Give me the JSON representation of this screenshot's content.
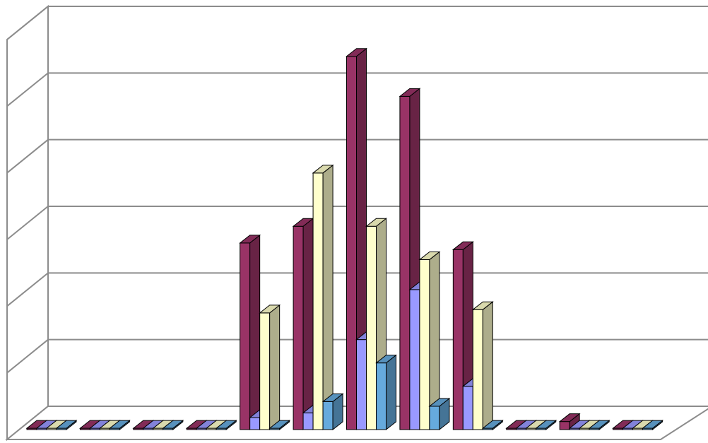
{
  "chart_data": {
    "type": "bar",
    "style": "3d-clustered-column",
    "gridlines": true,
    "legend": "none",
    "ylim": [
      0,
      6
    ],
    "categories": [
      "",
      "",
      "",
      "",
      "",
      "",
      "",
      "",
      "",
      "",
      "",
      ""
    ],
    "series": [
      {
        "color": "#993366",
        "values": [
          0,
          0,
          0,
          0,
          2.8,
          3.05,
          5.6,
          5.0,
          2.7,
          0,
          0.12,
          0
        ]
      },
      {
        "color": "#9999ff",
        "values": [
          0,
          0,
          0,
          0,
          0.18,
          0.25,
          1.35,
          2.1,
          0.65,
          0,
          0,
          0
        ]
      },
      {
        "color": "#ffffcc",
        "values": [
          0,
          0,
          0,
          0,
          1.75,
          3.85,
          3.05,
          2.55,
          1.8,
          0,
          0,
          0
        ]
      },
      {
        "color": "#66aadd",
        "values": [
          0,
          0,
          0,
          0,
          0.02,
          0.42,
          1.0,
          0.35,
          0,
          0,
          0,
          0
        ]
      }
    ]
  }
}
